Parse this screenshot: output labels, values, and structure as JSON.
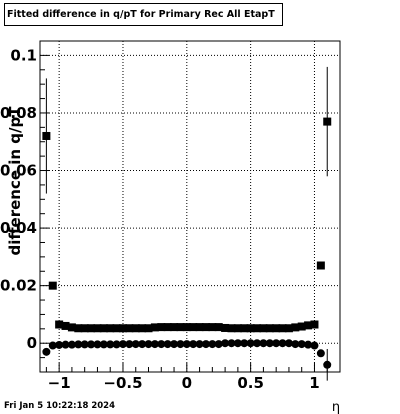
{
  "header": {
    "title": "Fitted difference in q/pT for Primary Rec All EtapT"
  },
  "footer": {
    "timestamp": "Fri Jan  5 10:22:18 2024"
  },
  "chart_data": {
    "type": "scatter",
    "title": "Fitted difference in q/pT for Primary Rec All EtapT",
    "xlabel": "η",
    "ylabel": "difference in q/pT",
    "xlim": [
      -1.15,
      1.2
    ],
    "ylim": [
      -0.01,
      0.105
    ],
    "grid": true,
    "x_ticks": [
      {
        "v": -1,
        "label": "−1"
      },
      {
        "v": -0.5,
        "label": "−0.5"
      },
      {
        "v": 0,
        "label": "0"
      },
      {
        "v": 0.5,
        "label": "0.5"
      },
      {
        "v": 1,
        "label": "1"
      }
    ],
    "y_ticks": [
      {
        "v": 0,
        "label": "0"
      },
      {
        "v": 0.02,
        "label": "0.02"
      },
      {
        "v": 0.04,
        "label": "0.04"
      },
      {
        "v": 0.06,
        "label": "0.06"
      },
      {
        "v": 0.08,
        "label": "0.08"
      },
      {
        "v": 0.1,
        "label": "0.1"
      }
    ],
    "series": [
      {
        "marker": "square",
        "points": [
          {
            "x": -1.1,
            "y": 0.072,
            "err": 0.02
          },
          {
            "x": -1.05,
            "y": 0.02,
            "err": 0.0
          },
          {
            "x": -1.0,
            "y": 0.0065,
            "err": 0.0
          },
          {
            "x": -0.95,
            "y": 0.006,
            "err": 0.0
          },
          {
            "x": -0.9,
            "y": 0.0055,
            "err": 0.0
          },
          {
            "x": -0.85,
            "y": 0.0052,
            "err": 0.0
          },
          {
            "x": -0.8,
            "y": 0.0052,
            "err": 0.0
          },
          {
            "x": -0.75,
            "y": 0.0052,
            "err": 0.0
          },
          {
            "x": -0.7,
            "y": 0.0052,
            "err": 0.0
          },
          {
            "x": -0.65,
            "y": 0.0052,
            "err": 0.0
          },
          {
            "x": -0.6,
            "y": 0.0052,
            "err": 0.0
          },
          {
            "x": -0.55,
            "y": 0.0052,
            "err": 0.0
          },
          {
            "x": -0.5,
            "y": 0.0052,
            "err": 0.0
          },
          {
            "x": -0.45,
            "y": 0.0052,
            "err": 0.0
          },
          {
            "x": -0.4,
            "y": 0.0052,
            "err": 0.0
          },
          {
            "x": -0.35,
            "y": 0.0052,
            "err": 0.0
          },
          {
            "x": -0.3,
            "y": 0.0052,
            "err": 0.0
          },
          {
            "x": -0.25,
            "y": 0.0055,
            "err": 0.0
          },
          {
            "x": -0.2,
            "y": 0.0056,
            "err": 0.0
          },
          {
            "x": -0.15,
            "y": 0.0056,
            "err": 0.0
          },
          {
            "x": -0.1,
            "y": 0.0056,
            "err": 0.0
          },
          {
            "x": -0.05,
            "y": 0.0056,
            "err": 0.0
          },
          {
            "x": 0.0,
            "y": 0.0056,
            "err": 0.0
          },
          {
            "x": 0.05,
            "y": 0.0056,
            "err": 0.0
          },
          {
            "x": 0.1,
            "y": 0.0056,
            "err": 0.0
          },
          {
            "x": 0.15,
            "y": 0.0056,
            "err": 0.0
          },
          {
            "x": 0.2,
            "y": 0.0056,
            "err": 0.0
          },
          {
            "x": 0.25,
            "y": 0.0056,
            "err": 0.0
          },
          {
            "x": 0.3,
            "y": 0.0053,
            "err": 0.0
          },
          {
            "x": 0.35,
            "y": 0.0052,
            "err": 0.0
          },
          {
            "x": 0.4,
            "y": 0.0052,
            "err": 0.0
          },
          {
            "x": 0.45,
            "y": 0.0052,
            "err": 0.0
          },
          {
            "x": 0.5,
            "y": 0.0052,
            "err": 0.0
          },
          {
            "x": 0.55,
            "y": 0.0052,
            "err": 0.0
          },
          {
            "x": 0.6,
            "y": 0.0052,
            "err": 0.0
          },
          {
            "x": 0.65,
            "y": 0.0052,
            "err": 0.0
          },
          {
            "x": 0.7,
            "y": 0.0052,
            "err": 0.0
          },
          {
            "x": 0.75,
            "y": 0.0052,
            "err": 0.0
          },
          {
            "x": 0.8,
            "y": 0.0052,
            "err": 0.0
          },
          {
            "x": 0.85,
            "y": 0.0055,
            "err": 0.0
          },
          {
            "x": 0.9,
            "y": 0.0058,
            "err": 0.0
          },
          {
            "x": 0.95,
            "y": 0.0062,
            "err": 0.0
          },
          {
            "x": 1.0,
            "y": 0.0065,
            "err": 0.0
          },
          {
            "x": 1.05,
            "y": 0.027,
            "err": 0.0
          },
          {
            "x": 1.1,
            "y": 0.077,
            "err": 0.019
          }
        ]
      },
      {
        "marker": "circle",
        "points": [
          {
            "x": -1.1,
            "y": -0.003,
            "err": 0.0
          },
          {
            "x": -1.05,
            "y": -0.0008,
            "err": 0.0
          },
          {
            "x": -1.0,
            "y": -0.0006,
            "err": 0.0
          },
          {
            "x": -0.95,
            "y": -0.0005,
            "err": 0.0
          },
          {
            "x": -0.9,
            "y": -0.0005,
            "err": 0.0
          },
          {
            "x": -0.85,
            "y": -0.0004,
            "err": 0.0
          },
          {
            "x": -0.8,
            "y": -0.0004,
            "err": 0.0
          },
          {
            "x": -0.75,
            "y": -0.0004,
            "err": 0.0
          },
          {
            "x": -0.7,
            "y": -0.0004,
            "err": 0.0
          },
          {
            "x": -0.65,
            "y": -0.0004,
            "err": 0.0
          },
          {
            "x": -0.6,
            "y": -0.0004,
            "err": 0.0
          },
          {
            "x": -0.55,
            "y": -0.0004,
            "err": 0.0
          },
          {
            "x": -0.5,
            "y": -0.0003,
            "err": 0.0
          },
          {
            "x": -0.45,
            "y": -0.0003,
            "err": 0.0
          },
          {
            "x": -0.4,
            "y": -0.0003,
            "err": 0.0
          },
          {
            "x": -0.35,
            "y": -0.0003,
            "err": 0.0
          },
          {
            "x": -0.3,
            "y": -0.0003,
            "err": 0.0
          },
          {
            "x": -0.25,
            "y": -0.0003,
            "err": 0.0
          },
          {
            "x": -0.2,
            "y": -0.0003,
            "err": 0.0
          },
          {
            "x": -0.15,
            "y": -0.0003,
            "err": 0.0
          },
          {
            "x": -0.1,
            "y": -0.0003,
            "err": 0.0
          },
          {
            "x": -0.05,
            "y": -0.0003,
            "err": 0.0
          },
          {
            "x": 0.0,
            "y": -0.0003,
            "err": 0.0
          },
          {
            "x": 0.05,
            "y": -0.0003,
            "err": 0.0
          },
          {
            "x": 0.1,
            "y": -0.0003,
            "err": 0.0
          },
          {
            "x": 0.15,
            "y": -0.0003,
            "err": 0.0
          },
          {
            "x": 0.2,
            "y": -0.0003,
            "err": 0.0
          },
          {
            "x": 0.25,
            "y": -0.0003,
            "err": 0.0
          },
          {
            "x": 0.3,
            "y": 0.0,
            "err": 0.0
          },
          {
            "x": 0.35,
            "y": 0.0,
            "err": 0.0
          },
          {
            "x": 0.4,
            "y": 0.0,
            "err": 0.0
          },
          {
            "x": 0.45,
            "y": 0.0,
            "err": 0.0
          },
          {
            "x": 0.5,
            "y": 0.0,
            "err": 0.0
          },
          {
            "x": 0.55,
            "y": 0.0,
            "err": 0.0
          },
          {
            "x": 0.6,
            "y": 0.0,
            "err": 0.0
          },
          {
            "x": 0.65,
            "y": 0.0,
            "err": 0.0
          },
          {
            "x": 0.7,
            "y": 0.0,
            "err": 0.0
          },
          {
            "x": 0.75,
            "y": 0.0,
            "err": 0.0
          },
          {
            "x": 0.8,
            "y": 0.0,
            "err": 0.0
          },
          {
            "x": 0.85,
            "y": -0.0003,
            "err": 0.0
          },
          {
            "x": 0.9,
            "y": -0.0003,
            "err": 0.0
          },
          {
            "x": 0.95,
            "y": -0.0005,
            "err": 0.0
          },
          {
            "x": 1.0,
            "y": -0.0008,
            "err": 0.0
          },
          {
            "x": 1.05,
            "y": -0.0035,
            "err": 0.0
          },
          {
            "x": 1.1,
            "y": -0.0075,
            "err": 0.0055
          }
        ]
      }
    ]
  }
}
